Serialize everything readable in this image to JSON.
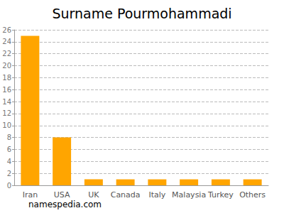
{
  "chart_data": {
    "type": "bar",
    "title": "Surname Pourmohammadi",
    "categories": [
      "Iran",
      "USA",
      "UK",
      "Canada",
      "Italy",
      "Malaysia",
      "Turkey",
      "Others"
    ],
    "values": [
      25,
      8,
      1,
      1,
      1,
      1,
      1,
      1
    ],
    "color": "#ffa500",
    "ylim": [
      0,
      26
    ],
    "yticks": [
      0,
      2,
      4,
      6,
      8,
      10,
      12,
      14,
      16,
      18,
      20,
      22,
      24,
      26
    ],
    "grid": true,
    "annotations": [
      "namespedia.com"
    ]
  }
}
